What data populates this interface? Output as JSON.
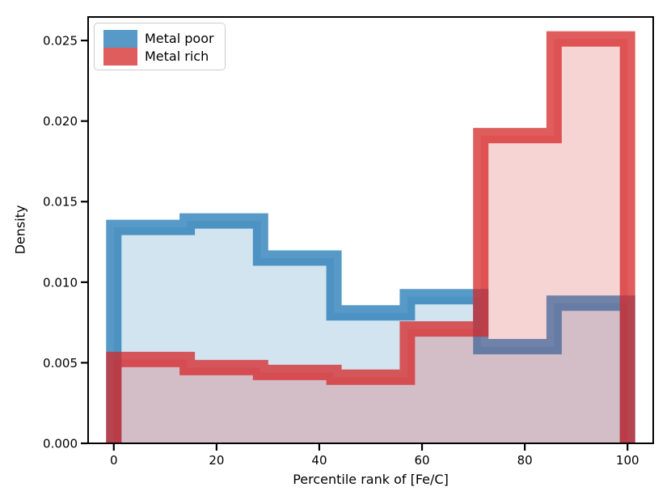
{
  "figure": {
    "background": "#ffffff"
  },
  "chart_data": {
    "type": "histogram",
    "histtype": "stepfilled",
    "xlabel": "Percentile rank of [Fe/C]",
    "ylabel": "Density",
    "xlim": [
      -5,
      105
    ],
    "ylim": [
      0,
      0.02646
    ],
    "bin_edges": [
      0,
      14.29,
      28.57,
      42.86,
      57.14,
      71.43,
      85.71,
      100
    ],
    "series": [
      {
        "name": "Metal poor",
        "color": "#1f77b4",
        "densities": [
          0.0134,
          0.0138,
          0.0115,
          0.0081,
          0.0091,
          0.006,
          0.0087
        ]
      },
      {
        "name": "Metal rich",
        "color": "#d62728",
        "densities": [
          0.0052,
          0.0047,
          0.0044,
          0.0041,
          0.0071,
          0.0191,
          0.0251
        ]
      }
    ],
    "fill_alpha": 0.2,
    "stroke_alpha": 0.75,
    "stroke_width_px": 19,
    "x_ticks": {
      "values": [
        0,
        20,
        40,
        60,
        80,
        100
      ],
      "labels": [
        "0",
        "20",
        "40",
        "60",
        "80",
        "100"
      ]
    },
    "y_ticks": {
      "values": [
        0,
        0.005,
        0.01,
        0.015,
        0.02,
        0.025
      ],
      "labels": [
        "0.000",
        "0.005",
        "0.010",
        "0.015",
        "0.020",
        "0.025"
      ]
    },
    "legend": {
      "position": "upper-left"
    },
    "grid": false
  }
}
